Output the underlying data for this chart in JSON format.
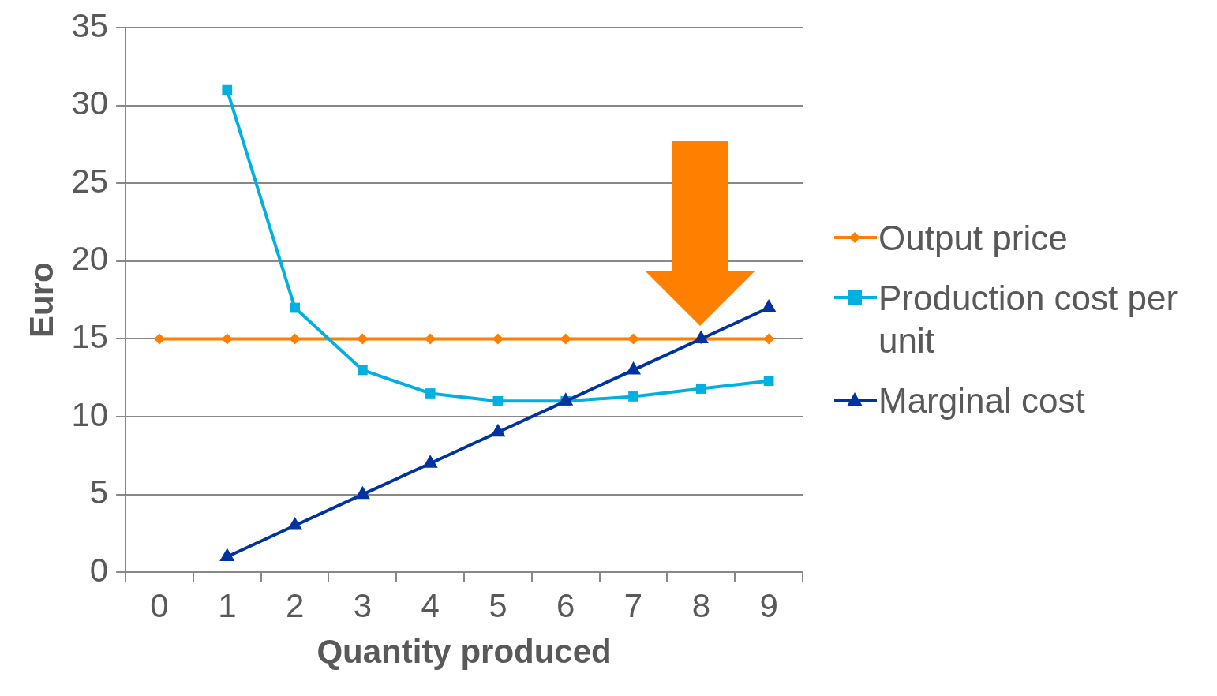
{
  "chart_data": {
    "type": "line",
    "xlabel": "Quantity produced",
    "ylabel": "Euro",
    "categories": [
      "0",
      "1",
      "2",
      "3",
      "4",
      "5",
      "6",
      "7",
      "8",
      "9"
    ],
    "series": [
      {
        "name": "Output price",
        "color": "#ff8000",
        "marker": "diamond",
        "values": [
          15,
          15,
          15,
          15,
          15,
          15,
          15,
          15,
          15,
          15
        ]
      },
      {
        "name": "Production cost per unit",
        "color": "#00b0e0",
        "marker": "square",
        "values": [
          null,
          31,
          17,
          13,
          11.5,
          11,
          11,
          11.3,
          11.8,
          12.3
        ]
      },
      {
        "name": "Marginal cost",
        "color": "#0033a0",
        "marker": "triangle",
        "values": [
          null,
          1,
          3,
          5,
          7,
          9,
          11,
          13,
          15,
          17
        ]
      }
    ],
    "ylim": [
      0,
      35
    ],
    "yticks": [
      0,
      5,
      10,
      15,
      20,
      25,
      30,
      35
    ],
    "grid": "y",
    "legend": "right",
    "line_style": "solid"
  }
}
